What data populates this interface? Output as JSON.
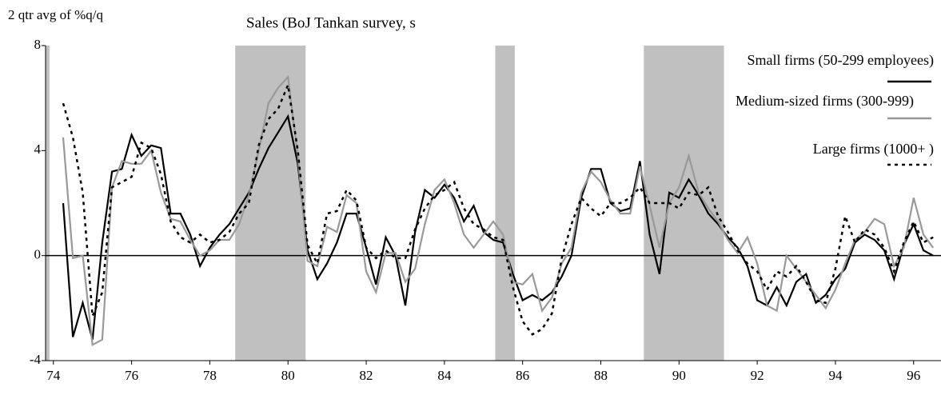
{
  "chart_data": {
    "type": "line",
    "title": "Sales (BoJ Tankan survey, s",
    "y_label": "2 qtr avg of %q/q",
    "xlim": [
      73.8,
      96.7
    ],
    "ylim": [
      -4,
      8
    ],
    "xticks": [
      74,
      76,
      78,
      80,
      82,
      84,
      86,
      88,
      90,
      92,
      94,
      96
    ],
    "yticks": [
      -4,
      0,
      4,
      8
    ],
    "legend": "top-right",
    "shading": [
      [
        73.8,
        73.9
      ],
      [
        78.65,
        80.45
      ],
      [
        85.3,
        85.8
      ],
      [
        89.1,
        91.15
      ]
    ],
    "shading_color": "#c0c0c0",
    "x": [
      74.25,
      74.5,
      74.75,
      75,
      75.25,
      75.5,
      75.75,
      76,
      76.25,
      76.5,
      76.75,
      77,
      77.25,
      77.5,
      77.75,
      78,
      78.25,
      78.5,
      78.75,
      79,
      79.25,
      79.5,
      79.75,
      80,
      80.25,
      80.5,
      80.75,
      81,
      81.25,
      81.5,
      81.75,
      82,
      82.25,
      82.5,
      82.75,
      83,
      83.25,
      83.5,
      83.75,
      84,
      84.25,
      84.5,
      84.75,
      85,
      85.25,
      85.5,
      85.75,
      86,
      86.25,
      86.5,
      86.75,
      87,
      87.25,
      87.5,
      87.75,
      88,
      88.25,
      88.5,
      88.75,
      89,
      89.25,
      89.5,
      89.75,
      90,
      90.25,
      90.5,
      90.75,
      91,
      91.25,
      91.5,
      91.75,
      92,
      92.25,
      92.5,
      92.75,
      93,
      93.25,
      93.5,
      93.75,
      94,
      94.25,
      94.5,
      94.75,
      95,
      95.25,
      95.5,
      95.75,
      96,
      96.25,
      96.5
    ],
    "series": [
      {
        "name": "Small firms (50-299 employees)",
        "color": "#000000",
        "style": "solid",
        "values": [
          2.0,
          -3.1,
          -1.8,
          -3.2,
          0.5,
          3.2,
          3.3,
          4.6,
          3.8,
          4.2,
          4.1,
          1.6,
          1.6,
          0.8,
          -0.4,
          0.3,
          0.8,
          1.2,
          1.8,
          2.4,
          3.3,
          4.1,
          4.7,
          5.3,
          3.5,
          0.2,
          -0.9,
          -0.3,
          0.5,
          1.6,
          1.6,
          0.3,
          -1.1,
          0.7,
          0.0,
          -1.9,
          0.9,
          2.5,
          2.2,
          2.7,
          2.2,
          1.3,
          1.9,
          0.9,
          0.6,
          0.5,
          -0.7,
          -1.7,
          -1.5,
          -1.7,
          -1.4,
          -0.8,
          0.0,
          2.2,
          3.3,
          3.3,
          2.0,
          1.7,
          1.8,
          3.6,
          0.8,
          -0.7,
          2.4,
          2.2,
          2.9,
          2.3,
          1.6,
          1.2,
          0.7,
          0.3,
          -0.4,
          -1.7,
          -1.9,
          -1.2,
          -1.9,
          -1.0,
          -0.7,
          -1.8,
          -1.5,
          -0.9,
          -0.5,
          0.5,
          0.8,
          0.6,
          0.2,
          -0.9,
          0.4,
          1.2,
          0.2,
          0.0
        ]
      },
      {
        "name": "Medium-sized firms (300-999)",
        "color": "#999999",
        "style": "solid",
        "values": [
          4.5,
          -0.1,
          0.0,
          -3.4,
          -3.2,
          2.6,
          3.6,
          3.5,
          3.5,
          4.0,
          2.4,
          1.4,
          1.3,
          0.6,
          0.0,
          0.2,
          0.6,
          0.6,
          1.2,
          2.3,
          4.0,
          5.8,
          6.4,
          6.8,
          3.8,
          -0.2,
          -0.4,
          1.1,
          0.9,
          2.3,
          2.0,
          -0.6,
          -1.4,
          0.1,
          0.1,
          -1.0,
          -0.5,
          1.2,
          2.5,
          2.9,
          2.0,
          0.8,
          0.3,
          0.8,
          1.3,
          0.8,
          -1.0,
          -1.1,
          -0.7,
          -2.1,
          -1.6,
          -0.3,
          0.3,
          2.4,
          3.2,
          2.8,
          2.1,
          1.6,
          1.6,
          3.4,
          1.9,
          0.3,
          2.0,
          2.6,
          3.8,
          2.4,
          1.8,
          1.3,
          0.6,
          0.1,
          0.7,
          -0.3,
          -1.9,
          -2.1,
          0.0,
          -0.5,
          -1.0,
          -1.5,
          -2.0,
          -1.3,
          -0.3,
          0.6,
          0.9,
          1.4,
          1.2,
          -0.4,
          0.3,
          2.2,
          0.8,
          0.3
        ]
      },
      {
        "name": "Large firms (1000+ )",
        "color": "#000000",
        "style": "dotted",
        "values": [
          5.8,
          4.5,
          2.4,
          -2.3,
          -1.4,
          2.6,
          2.8,
          3.0,
          4.3,
          4.1,
          3.1,
          1.3,
          0.7,
          0.5,
          0.8,
          0.5,
          0.6,
          0.9,
          1.6,
          2.0,
          4.2,
          5.2,
          5.6,
          6.5,
          4.0,
          0.4,
          -0.3,
          1.6,
          1.7,
          2.5,
          2.1,
          0.3,
          -0.1,
          0.2,
          -0.1,
          -0.1,
          1.0,
          1.8,
          2.3,
          2.5,
          2.8,
          1.8,
          1.2,
          1.0,
          0.7,
          0.6,
          -1.2,
          -2.5,
          -3.0,
          -2.8,
          -2.2,
          -0.1,
          1.2,
          2.2,
          1.8,
          1.5,
          2.0,
          2.0,
          2.2,
          2.6,
          2.0,
          2.0,
          2.0,
          1.8,
          2.4,
          2.3,
          2.6,
          1.5,
          0.9,
          0.2,
          -0.3,
          -0.6,
          -1.3,
          -0.6,
          -0.8,
          -0.4,
          -1.0,
          -1.7,
          -1.8,
          -0.5,
          1.5,
          0.5,
          1.0,
          0.8,
          0.3,
          -0.6,
          0.5,
          1.3,
          0.5,
          0.7
        ]
      }
    ]
  }
}
